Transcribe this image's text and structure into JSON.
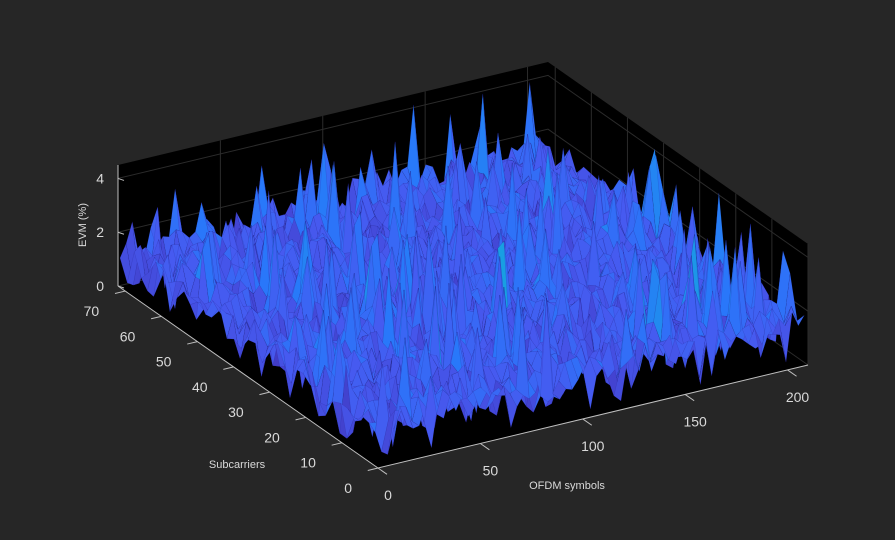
{
  "chart_data": {
    "type": "surface",
    "xlabel": "OFDM symbols",
    "ylabel": "Subcarriers",
    "zlabel": "EVM (%)",
    "x_ticks": [
      "0",
      "50",
      "100",
      "150",
      "200"
    ],
    "y_ticks": [
      "0",
      "10",
      "20",
      "30",
      "40",
      "50",
      "60",
      "70"
    ],
    "z_ticks": [
      "0",
      "2",
      "4"
    ],
    "xlim": [
      0,
      210
    ],
    "ylim": [
      0,
      72
    ],
    "zlim": [
      0,
      4.5
    ],
    "x_range": [
      1,
      210
    ],
    "y_range": [
      1,
      72
    ],
    "z_typical_range": [
      0.8,
      2.0
    ],
    "z_peak_max": 4.5,
    "colormap": "parula",
    "grid": true,
    "colors": {
      "figure_background": "#262626",
      "axes_background": "#000000",
      "surface_low": "#3e26a8",
      "surface_mid": "#2a6ef5",
      "surface_high": "#2ec6c6",
      "tick_text": "#d9d9d9"
    }
  }
}
